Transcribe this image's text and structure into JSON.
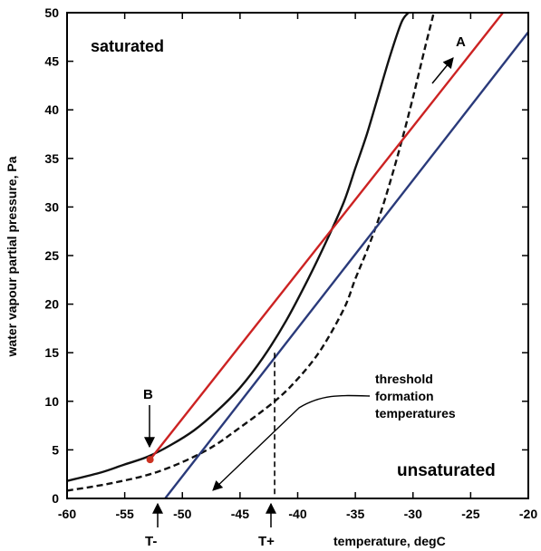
{
  "chart_data": {
    "type": "line",
    "xlabel": "temperature, degC",
    "ylabel": "water vapour partial pressure, Pa",
    "xlim": [
      -60,
      -20
    ],
    "ylim": [
      0,
      50
    ],
    "xticks": [
      -60,
      -55,
      -50,
      -45,
      -40,
      -35,
      -30,
      -25,
      -20
    ],
    "yticks": [
      0,
      5,
      10,
      15,
      20,
      25,
      30,
      35,
      40,
      45,
      50
    ],
    "series": [
      {
        "color": "#111111",
        "style": "solid",
        "x": [
          -60,
          -57,
          -55,
          -53,
          -51,
          -49,
          -47,
          -45,
          -43,
          -41,
          -39,
          -37.5,
          -36,
          -35,
          -34,
          -33,
          -32,
          -31,
          -30.4
        ],
        "y": [
          1.8,
          2.7,
          3.5,
          4.3,
          5.5,
          7.0,
          9.0,
          11.4,
          14.5,
          18.3,
          22.8,
          26.5,
          30.5,
          34.0,
          37.5,
          41.5,
          45.5,
          49.0,
          50.0
        ]
      },
      {
        "color": "#111111",
        "style": "dashed",
        "x": [
          -60,
          -56,
          -52,
          -48,
          -45,
          -42,
          -40,
          -38,
          -36,
          -35,
          -34,
          -33,
          -32,
          -31,
          -30,
          -29,
          -28.2
        ],
        "y": [
          0.8,
          1.6,
          2.8,
          4.9,
          7.3,
          10.0,
          12.3,
          15.3,
          19.5,
          22.6,
          25.5,
          28.7,
          32.5,
          36.7,
          41.3,
          46.2,
          50.0
        ]
      },
      {
        "color": "#cc2222",
        "style": "solid",
        "x": [
          -52.8,
          -22.2
        ],
        "y": [
          4.0,
          50.0
        ]
      },
      {
        "color": "#2a3a7a",
        "style": "solid",
        "x": [
          -51.5,
          -20
        ],
        "y": [
          0.0,
          48.0
        ]
      }
    ],
    "point": {
      "label": "B",
      "x": -52.8,
      "y": 4.0,
      "color": "#cc3322"
    },
    "marker_line": {
      "x": -42,
      "y_top": 15.0
    },
    "annotations": {
      "saturated": "saturated",
      "unsaturated": "unsaturated",
      "A": "A",
      "B": "B",
      "threshold_1": "threshold",
      "threshold_2": "formation",
      "threshold_3": "temperatures",
      "T_minus": "T-",
      "T_plus": "T+"
    }
  }
}
